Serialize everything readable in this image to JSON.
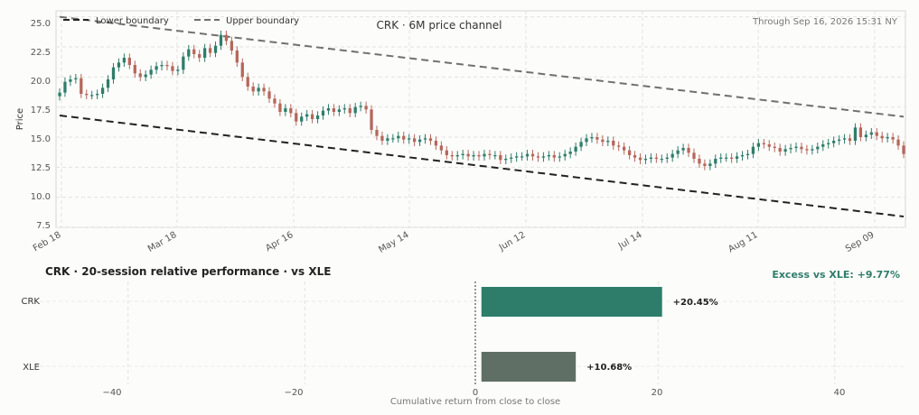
{
  "chart_data": [
    {
      "type": "candlestick",
      "title": "CRK · 6M price channel",
      "annotation": "Through Sep 16, 2026 15:31 NY",
      "ylabel": "Price",
      "xlabel": "",
      "ylim": [
        7.5,
        25.5
      ],
      "yticks": [
        "7.5",
        "10.0",
        "12.5",
        "15.0",
        "17.5",
        "20.0",
        "22.5",
        "25.0"
      ],
      "xticks": [
        "Feb 18",
        "Mar 18",
        "Apr 16",
        "May 14",
        "Jun 12",
        "Jul 14",
        "Aug 11",
        "Sep 09"
      ],
      "grid": true,
      "legend_position": "top-left",
      "legend": [
        "Lower boundary",
        "Upper boundary"
      ],
      "colors": {
        "up": "#2e7d6b",
        "down": "#b5675b",
        "lower": "#222222",
        "upper": "#707070"
      },
      "lower_boundary": [
        16.8,
        8.4
      ],
      "upper_boundary": [
        25.0,
        16.7
      ],
      "closes": [
        18.7,
        19.6,
        19.8,
        19.9,
        18.6,
        18.5,
        18.5,
        18.6,
        19.1,
        19.8,
        20.8,
        21.2,
        21.6,
        21.0,
        20.3,
        20.0,
        20.2,
        20.6,
        20.9,
        21.0,
        20.9,
        20.5,
        20.6,
        21.7,
        22.3,
        21.9,
        21.6,
        22.4,
        22.0,
        22.6,
        23.5,
        23.0,
        22.2,
        21.2,
        20.0,
        19.2,
        18.8,
        19.1,
        18.8,
        18.2,
        17.8,
        17.1,
        17.4,
        17.0,
        16.3,
        16.7,
        16.9,
        16.5,
        16.8,
        17.2,
        17.4,
        17.1,
        17.3,
        17.4,
        17.0,
        17.5,
        17.6,
        17.3,
        15.6,
        15.1,
        14.7,
        14.9,
        14.9,
        15.1,
        14.8,
        14.9,
        14.6,
        14.8,
        14.9,
        14.7,
        14.3,
        13.9,
        13.5,
        13.4,
        13.5,
        13.6,
        13.4,
        13.5,
        13.4,
        13.6,
        13.5,
        13.5,
        13.1,
        13.2,
        13.3,
        13.4,
        13.4,
        13.6,
        13.4,
        13.3,
        13.4,
        13.5,
        13.3,
        13.4,
        13.6,
        13.8,
        14.2,
        14.6,
        14.9,
        15.0,
        14.8,
        14.6,
        14.7,
        14.3,
        14.2,
        13.9,
        13.5,
        13.3,
        13.1,
        13.2,
        13.3,
        13.2,
        13.2,
        13.3,
        13.6,
        13.9,
        14.1,
        13.7,
        13.2,
        12.8,
        12.6,
        12.8,
        13.2,
        13.3,
        13.3,
        13.2,
        13.4,
        13.5,
        13.6,
        14.2,
        14.5,
        14.4,
        14.2,
        14.1,
        13.8,
        14.0,
        14.1,
        14.2,
        14.0,
        13.9,
        14.0,
        14.2,
        14.4,
        14.5,
        14.7,
        14.8,
        14.9,
        14.7,
        15.8,
        15.0,
        15.2,
        15.4,
        15.1,
        14.9,
        15.0,
        14.8,
        14.3,
        13.6
      ],
      "_d": "lower/upper boundary = price at first and last session"
    },
    {
      "type": "bar",
      "orientation": "horizontal",
      "title": "CRK  ·  20-session relative performance  ·  vs XLE",
      "annotation": "Excess vs XLE: +9.77%",
      "xlabel": "Cumulative return from close to close",
      "categories": [
        "CRK",
        "XLE"
      ],
      "values": [
        20.45,
        10.68
      ],
      "value_labels": [
        "+20.45%",
        "+10.68%"
      ],
      "xlim": [
        -50,
        48
      ],
      "xticks": [
        "−40",
        "−20",
        "0",
        "20",
        "40"
      ],
      "colors": [
        "#2e7d6b",
        "#5f6f65"
      ],
      "annotation_color": "#2e7d6b"
    }
  ]
}
